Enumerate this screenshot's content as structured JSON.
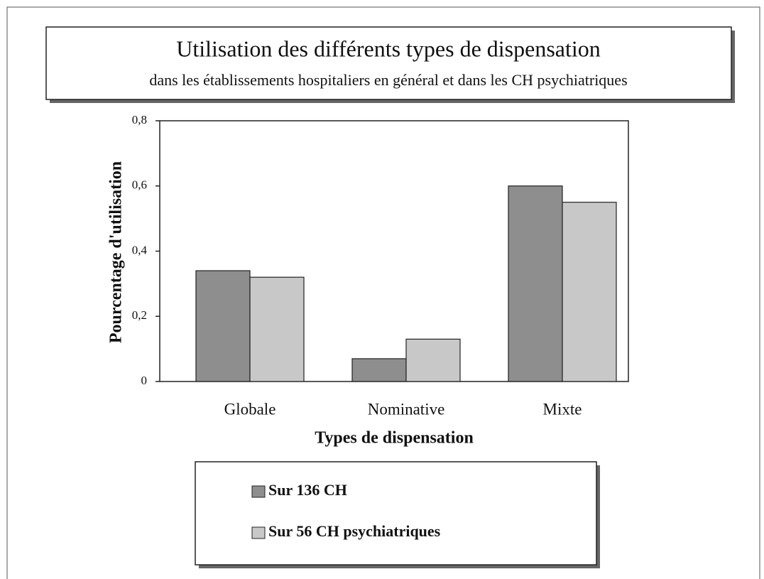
{
  "chart_data": {
    "type": "bar",
    "title": "Utilisation des différents types de dispensation",
    "subtitle": "dans les établissements hospitaliers en général et dans les CH psychiatriques",
    "x_label": "Types de dispensation",
    "y_label": "Pourcentage d'utilisation",
    "categories": [
      "Globale",
      "Nominative",
      "Mixte"
    ],
    "series": [
      {
        "name": "Sur 136 CH",
        "color": "#8e8e8e",
        "values": [
          0.34,
          0.07,
          0.6
        ]
      },
      {
        "name": "Sur 56 CH psychiatriques",
        "color": "#c8c8c8",
        "values": [
          0.32,
          0.13,
          0.55
        ]
      }
    ],
    "ylim": [
      0,
      0.8
    ],
    "yticks": [
      0,
      {
        "value": 0.2,
        "label": "0,2"
      },
      {
        "value": 0.4,
        "label": "0,4"
      },
      {
        "value": 0.6,
        "label": "0,6"
      },
      {
        "value": 0.8,
        "label": "0,8"
      }
    ],
    "grid": false
  }
}
